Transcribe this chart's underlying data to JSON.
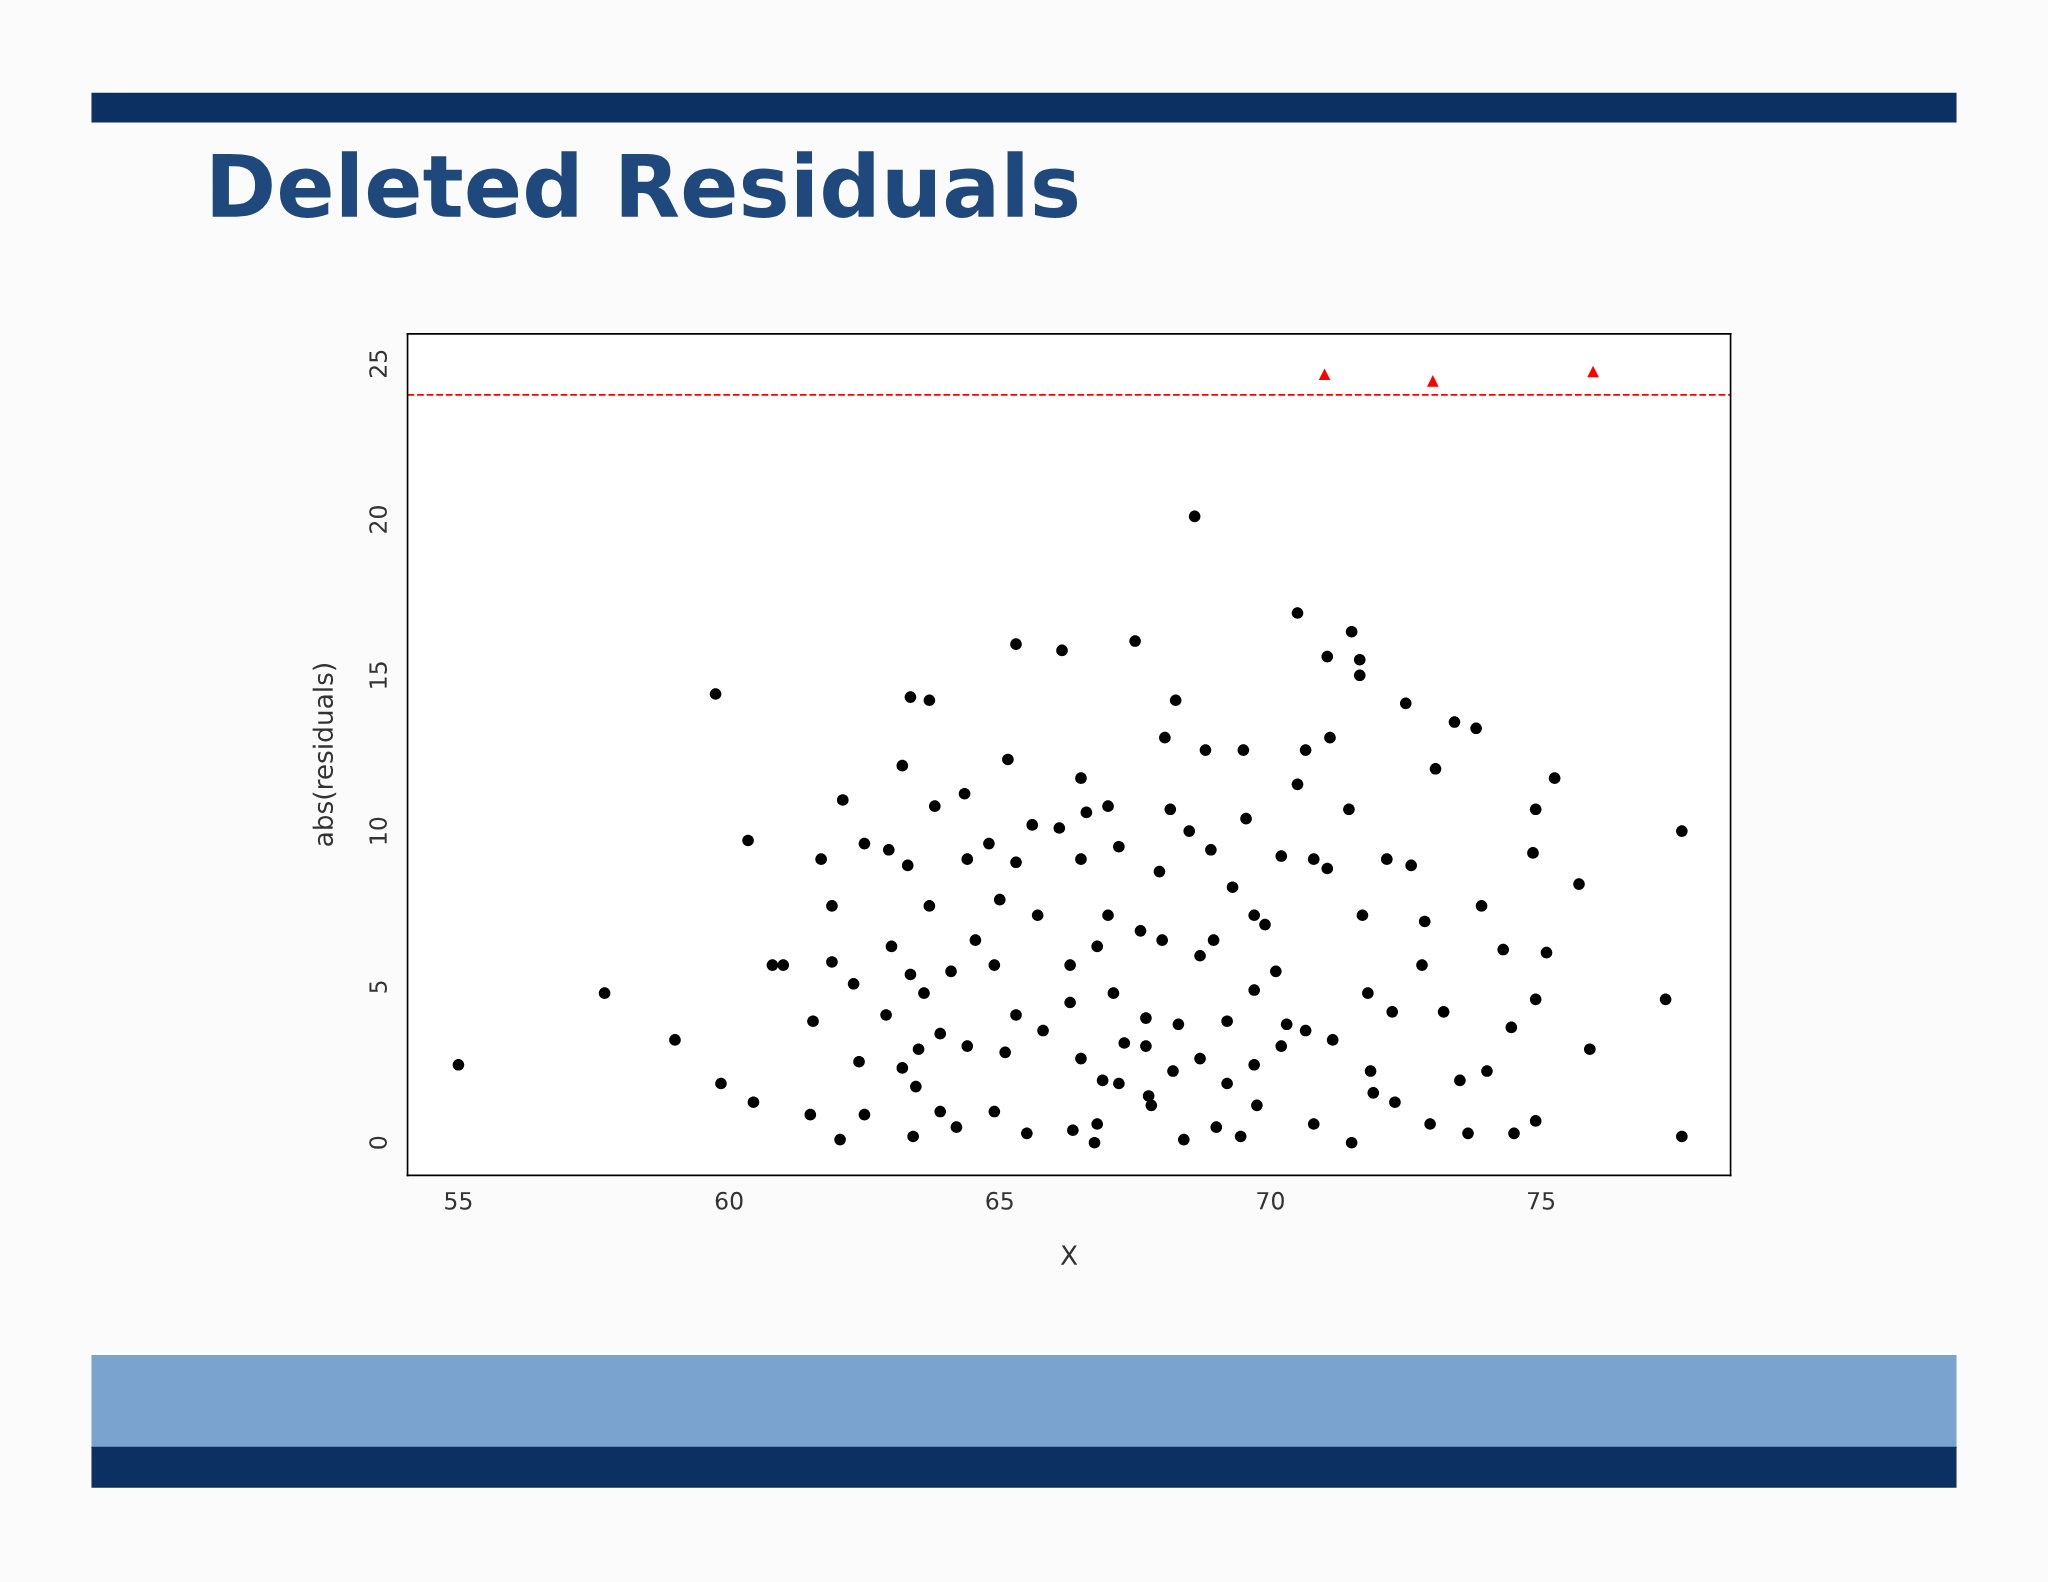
{
  "chart_data": {
    "type": "scatter",
    "title": "Deleted Residuals",
    "xlabel": "X",
    "ylabel": "abs(residuals)",
    "xlim": [
      54.06,
      78.5
    ],
    "ylim": [
      -1.05,
      25.96
    ],
    "xticks": [
      55,
      60,
      65,
      70,
      75
    ],
    "yticks": [
      0,
      5,
      10,
      15,
      20,
      25
    ],
    "grid": false,
    "legend": false,
    "ref_lines": [
      {
        "axis": "y",
        "value": 24,
        "color": "#ff0000",
        "line_style": "dashed"
      }
    ],
    "series": [
      {
        "color": "#000000",
        "marker": "circle",
        "x": [
          55.0,
          57.7,
          59.0,
          59.75,
          59.85,
          60.35,
          60.45,
          60.8,
          61.0,
          61.5,
          61.55,
          61.7,
          61.9,
          61.9,
          62.1,
          62.05,
          62.3,
          62.4,
          62.5,
          62.5,
          62.9,
          62.95,
          63.0,
          63.2,
          63.2,
          63.3,
          63.35,
          63.35,
          63.4,
          63.5,
          63.7,
          63.7,
          63.8,
          63.6,
          63.9,
          64.1,
          64.35,
          64.4,
          64.2,
          64.55,
          64.8,
          65.0,
          65.15,
          65.3,
          65.3,
          65.3,
          65.5,
          65.6,
          65.7,
          66.1,
          66.15,
          66.3,
          66.35,
          66.5,
          66.5,
          66.6,
          66.75,
          66.8,
          66.9,
          67.0,
          67.1,
          67.2,
          67.3,
          67.5,
          67.6,
          67.7,
          67.8,
          67.95,
          68.05,
          68.15,
          68.25,
          68.3,
          68.4,
          68.5,
          68.6,
          68.7,
          68.8,
          68.9,
          69.0,
          69.2,
          69.3,
          69.45,
          69.5,
          69.55,
          69.7,
          69.75,
          69.9,
          70.1,
          70.2,
          70.3,
          70.5,
          70.5,
          70.65,
          70.8,
          70.8,
          71.05,
          71.1,
          71.05,
          71.15,
          71.45,
          71.5,
          71.5,
          71.65,
          71.65,
          71.7,
          71.8,
          71.9,
          72.15,
          72.25,
          72.5,
          72.6,
          72.8,
          72.85,
          72.95,
          73.05,
          73.2,
          73.4,
          73.5,
          73.65,
          73.8,
          73.9,
          74.0,
          74.3,
          74.45,
          74.5,
          74.85,
          74.9,
          74.9,
          74.9,
          75.1,
          75.25,
          75.7,
          75.9,
          77.3,
          77.6,
          77.6,
          63.45,
          64.4,
          65.1,
          65.8,
          66.5,
          67.2,
          67.7,
          68.2,
          68.7,
          69.2,
          69.7,
          70.2,
          70.65,
          71.85,
          72.3,
          64.9,
          66.3,
          67.0,
          68.0,
          68.95,
          69.7,
          67.75,
          66.8,
          64.9,
          63.9
        ],
        "values": [
          2.5,
          4.8,
          3.3,
          14.4,
          1.9,
          9.7,
          1.3,
          5.7,
          5.7,
          0.9,
          3.9,
          9.1,
          7.6,
          5.8,
          11.0,
          0.1,
          5.1,
          2.6,
          9.6,
          0.9,
          4.1,
          9.4,
          6.3,
          12.1,
          2.4,
          8.9,
          14.3,
          5.4,
          0.2,
          3.0,
          14.2,
          7.6,
          10.8,
          4.8,
          3.5,
          5.5,
          11.2,
          9.1,
          0.5,
          6.5,
          9.6,
          7.8,
          12.3,
          16.0,
          9.0,
          4.1,
          0.3,
          10.2,
          7.3,
          10.1,
          15.8,
          4.5,
          0.4,
          11.7,
          9.1,
          10.6,
          0.0,
          6.3,
          2.0,
          10.8,
          4.8,
          9.5,
          3.2,
          16.1,
          6.8,
          4.0,
          1.2,
          8.7,
          13.0,
          10.7,
          14.2,
          3.8,
          0.1,
          10.0,
          20.1,
          6.0,
          12.6,
          9.4,
          0.5,
          3.9,
          8.2,
          0.2,
          12.6,
          10.4,
          4.9,
          1.2,
          7.0,
          5.5,
          9.2,
          3.8,
          17.0,
          11.5,
          12.6,
          9.1,
          0.6,
          15.6,
          13.0,
          8.8,
          3.3,
          10.7,
          16.4,
          0.0,
          15.5,
          15.0,
          7.3,
          4.8,
          1.6,
          9.1,
          4.2,
          14.1,
          8.9,
          5.7,
          7.1,
          0.6,
          12.0,
          4.2,
          13.5,
          2.0,
          0.3,
          13.3,
          7.6,
          2.3,
          6.2,
          3.7,
          0.3,
          9.3,
          10.7,
          4.6,
          0.7,
          6.1,
          11.7,
          8.3,
          3.0,
          4.6,
          10.0,
          0.2,
          1.8,
          3.1,
          2.9,
          3.6,
          2.7,
          1.9,
          3.1,
          2.3,
          2.7,
          1.9,
          2.5,
          3.1,
          3.6,
          2.3,
          1.3,
          5.7,
          5.7,
          7.3,
          6.5,
          6.5,
          7.3,
          1.5,
          0.6,
          1.0,
          1.0
        ]
      },
      {
        "color": "#ff0000",
        "marker": "triangle",
        "x": [
          71.0,
          73.0,
          75.96
        ],
        "values": [
          24.66,
          24.45,
          24.75
        ]
      }
    ]
  }
}
